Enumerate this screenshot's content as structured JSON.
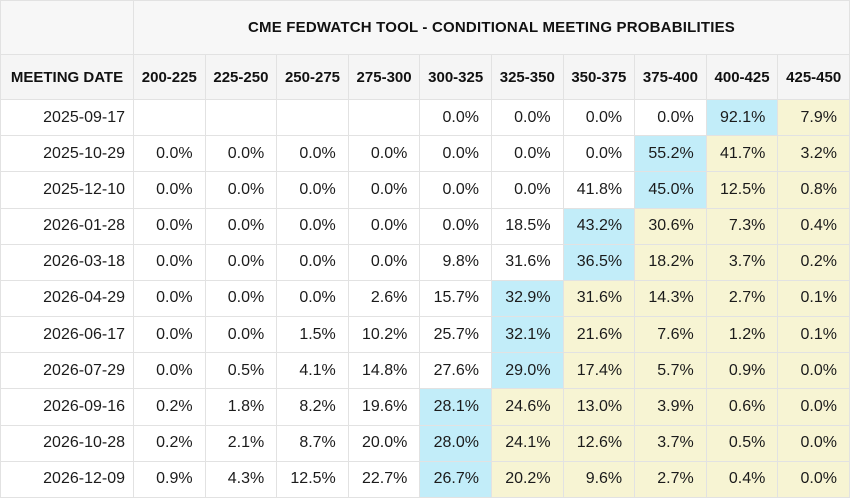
{
  "table": {
    "title": "CME FEDWATCH TOOL - CONDITIONAL MEETING PROBABILITIES",
    "columns": [
      "MEETING DATE",
      "200-225",
      "225-250",
      "250-275",
      "275-300",
      "300-325",
      "325-350",
      "350-375",
      "375-400",
      "400-425",
      "425-450"
    ],
    "rows": [
      {
        "date": "2025-09-17",
        "values": [
          "",
          "",
          "",
          "",
          "0.0%",
          "0.0%",
          "0.0%",
          "0.0%",
          "92.1%",
          "7.9%"
        ],
        "max_index": 8
      },
      {
        "date": "2025-10-29",
        "values": [
          "0.0%",
          "0.0%",
          "0.0%",
          "0.0%",
          "0.0%",
          "0.0%",
          "0.0%",
          "55.2%",
          "41.7%",
          "3.2%"
        ],
        "max_index": 7
      },
      {
        "date": "2025-12-10",
        "values": [
          "0.0%",
          "0.0%",
          "0.0%",
          "0.0%",
          "0.0%",
          "0.0%",
          "41.8%",
          "45.0%",
          "12.5%",
          "0.8%"
        ],
        "max_index": 7
      },
      {
        "date": "2026-01-28",
        "values": [
          "0.0%",
          "0.0%",
          "0.0%",
          "0.0%",
          "0.0%",
          "18.5%",
          "43.2%",
          "30.6%",
          "7.3%",
          "0.4%"
        ],
        "max_index": 6
      },
      {
        "date": "2026-03-18",
        "values": [
          "0.0%",
          "0.0%",
          "0.0%",
          "0.0%",
          "9.8%",
          "31.6%",
          "36.5%",
          "18.2%",
          "3.7%",
          "0.2%"
        ],
        "max_index": 6
      },
      {
        "date": "2026-04-29",
        "values": [
          "0.0%",
          "0.0%",
          "0.0%",
          "2.6%",
          "15.7%",
          "32.9%",
          "31.6%",
          "14.3%",
          "2.7%",
          "0.1%"
        ],
        "max_index": 5
      },
      {
        "date": "2026-06-17",
        "values": [
          "0.0%",
          "0.0%",
          "1.5%",
          "10.2%",
          "25.7%",
          "32.1%",
          "21.6%",
          "7.6%",
          "1.2%",
          "0.1%"
        ],
        "max_index": 5
      },
      {
        "date": "2026-07-29",
        "values": [
          "0.0%",
          "0.5%",
          "4.1%",
          "14.8%",
          "27.6%",
          "29.0%",
          "17.4%",
          "5.7%",
          "0.9%",
          "0.0%"
        ],
        "max_index": 5
      },
      {
        "date": "2026-09-16",
        "values": [
          "0.2%",
          "1.8%",
          "8.2%",
          "19.6%",
          "28.1%",
          "24.6%",
          "13.0%",
          "3.9%",
          "0.6%",
          "0.0%"
        ],
        "max_index": 4
      },
      {
        "date": "2026-10-28",
        "values": [
          "0.2%",
          "2.1%",
          "8.7%",
          "20.0%",
          "28.0%",
          "24.1%",
          "12.6%",
          "3.7%",
          "0.5%",
          "0.0%"
        ],
        "max_index": 4
      },
      {
        "date": "2026-12-09",
        "values": [
          "0.9%",
          "4.3%",
          "12.5%",
          "22.7%",
          "26.7%",
          "20.2%",
          "9.6%",
          "2.7%",
          "0.4%",
          "0.0%"
        ],
        "max_index": 4
      }
    ]
  },
  "colors": {
    "max_highlight": "#c2edf9",
    "tail_highlight": "#f7f4d3",
    "header_background": "#f5f5f5",
    "title_background": "#f7f7f7",
    "grid_border": "#e2e2e2",
    "text": "#1b1b1b"
  }
}
